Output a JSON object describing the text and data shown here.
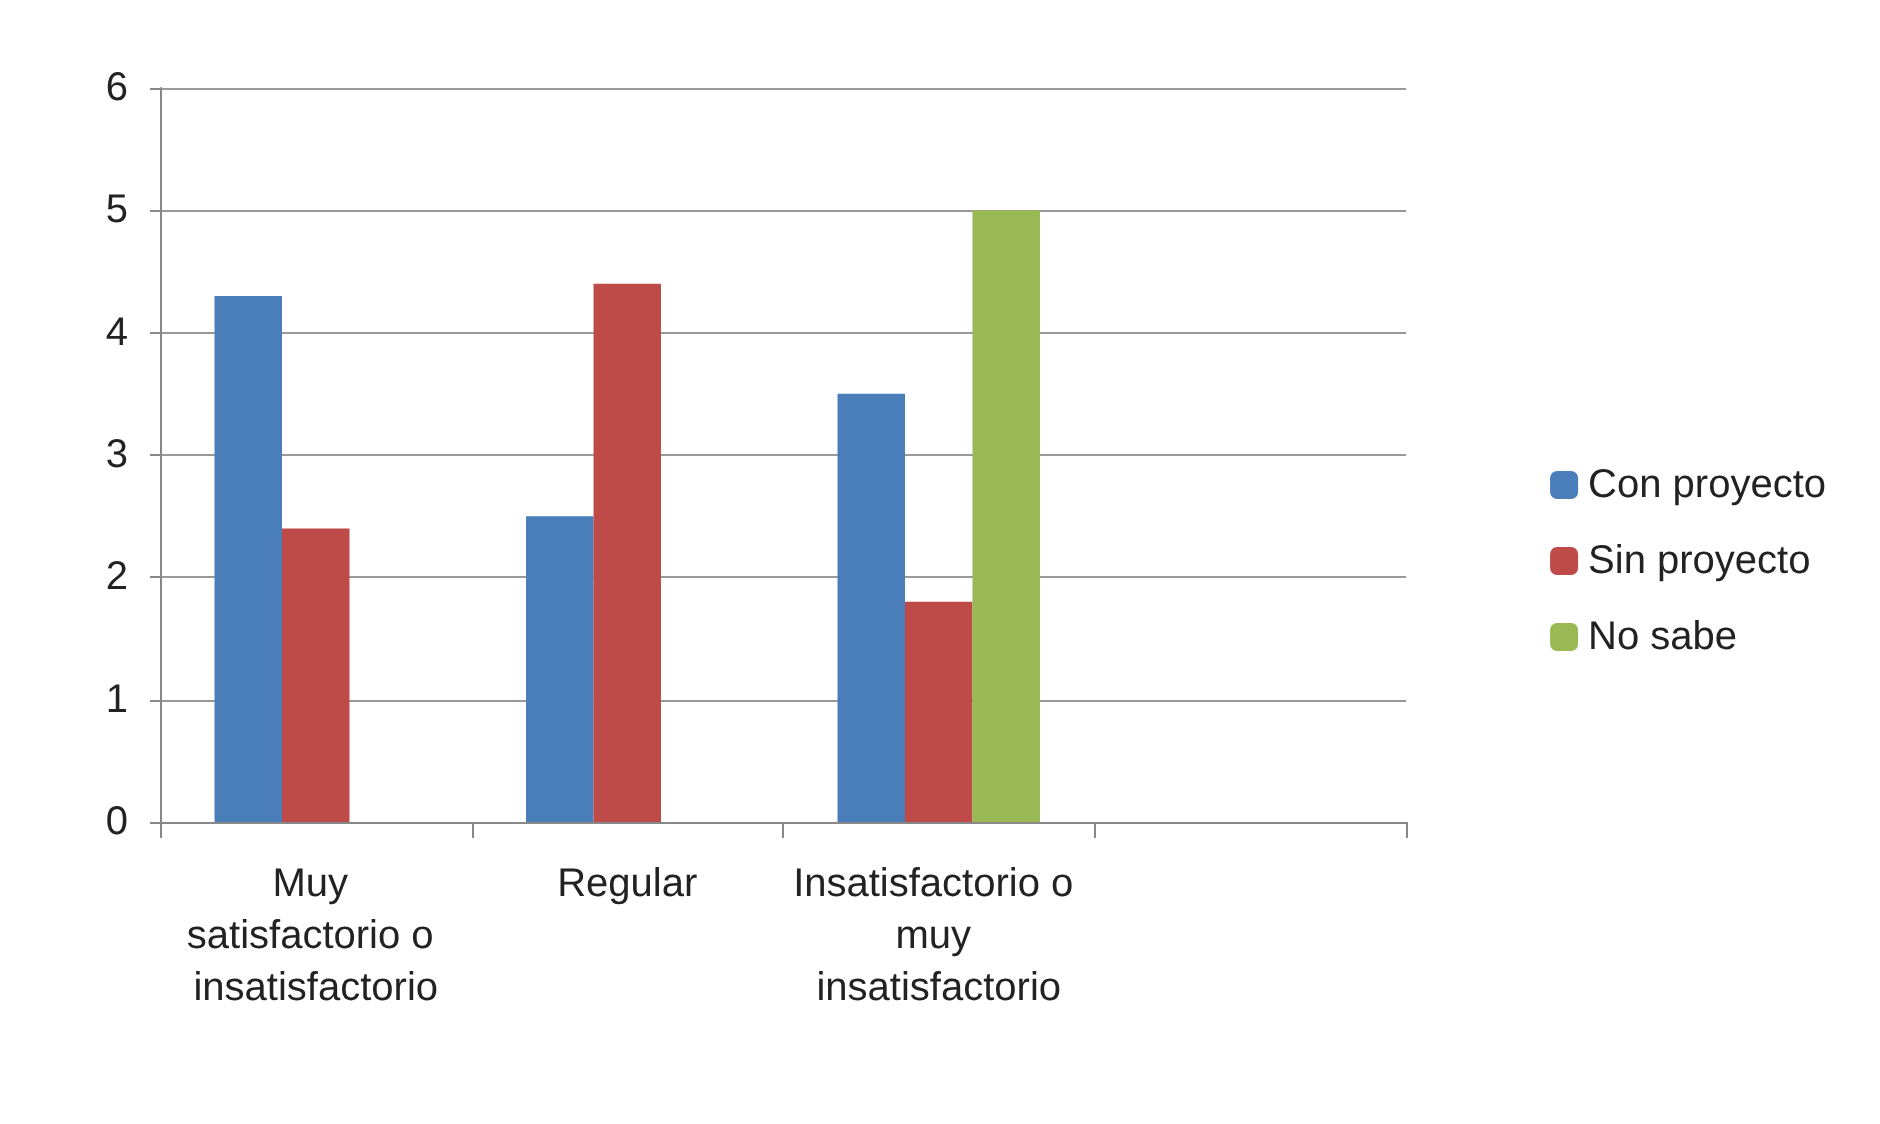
{
  "chart_data": {
    "type": "bar",
    "categories": [
      "Muy satisfactorio o insatisfactorio",
      "Regular",
      "Insatisfactorio o muy insatisfactorio",
      null
    ],
    "series": [
      {
        "name": "Con proyecto",
        "color": "#4a7ebb",
        "values": [
          4.3,
          2.5,
          3.5,
          null
        ]
      },
      {
        "name": "Sin proyecto",
        "color": "#be4b48",
        "values": [
          2.4,
          4.4,
          1.8,
          null
        ]
      },
      {
        "name": "No sabe",
        "color": "#98b954",
        "values": [
          null,
          null,
          5,
          null
        ]
      }
    ],
    "ylim": [
      0,
      6
    ],
    "yticks": [
      0,
      1,
      2,
      3,
      4,
      5,
      6
    ],
    "grid": "y",
    "legend": "right"
  }
}
